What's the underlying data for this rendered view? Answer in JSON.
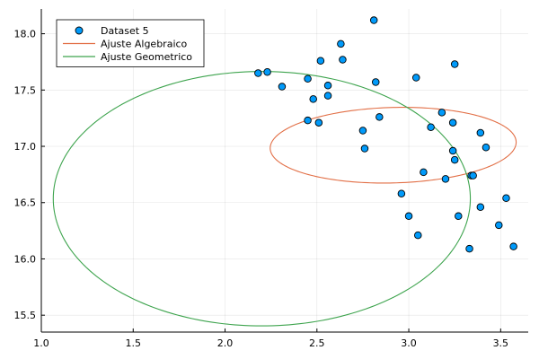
{
  "chart_data": {
    "type": "scatter",
    "xlim": [
      1.0,
      3.65
    ],
    "ylim": [
      15.35,
      18.22
    ],
    "x_ticks": [
      1.0,
      1.5,
      2.0,
      2.5,
      3.0,
      3.5
    ],
    "x_tick_labels": [
      "1.0",
      "1.5",
      "2.0",
      "2.5",
      "3.0",
      "3.5"
    ],
    "y_ticks": [
      15.5,
      16.0,
      16.5,
      17.0,
      17.5,
      18.0
    ],
    "y_tick_labels": [
      "15.5",
      "16.0",
      "16.5",
      "17.0",
      "17.5",
      "18.0"
    ],
    "grid": true,
    "legend_position": "top-left",
    "series": [
      {
        "name": "Dataset 5",
        "kind": "scatter",
        "color": "#009AFA",
        "points": [
          [
            2.18,
            17.65
          ],
          [
            2.23,
            17.66
          ],
          [
            2.31,
            17.53
          ],
          [
            2.45,
            17.6
          ],
          [
            2.52,
            17.76
          ],
          [
            2.63,
            17.91
          ],
          [
            2.64,
            17.77
          ],
          [
            2.81,
            18.12
          ],
          [
            2.56,
            17.54
          ],
          [
            2.48,
            17.42
          ],
          [
            2.56,
            17.45
          ],
          [
            2.45,
            17.23
          ],
          [
            2.51,
            17.21
          ],
          [
            2.82,
            17.57
          ],
          [
            3.04,
            17.61
          ],
          [
            3.25,
            17.73
          ],
          [
            2.84,
            17.26
          ],
          [
            2.75,
            17.14
          ],
          [
            2.76,
            16.98
          ],
          [
            3.12,
            17.17
          ],
          [
            3.18,
            17.3
          ],
          [
            3.24,
            17.21
          ],
          [
            3.39,
            17.12
          ],
          [
            3.42,
            16.99
          ],
          [
            3.24,
            16.96
          ],
          [
            3.25,
            16.88
          ],
          [
            3.34,
            16.74
          ],
          [
            3.35,
            16.74
          ],
          [
            3.08,
            16.77
          ],
          [
            3.2,
            16.71
          ],
          [
            2.96,
            16.58
          ],
          [
            3.0,
            16.38
          ],
          [
            3.05,
            16.21
          ],
          [
            3.27,
            16.38
          ],
          [
            3.39,
            16.46
          ],
          [
            3.53,
            16.54
          ],
          [
            3.49,
            16.3
          ],
          [
            3.33,
            16.09
          ],
          [
            3.57,
            16.11
          ]
        ]
      },
      {
        "name": "Ajuste Algebraico",
        "kind": "ellipse",
        "color": "#E26F46",
        "center": [
          2.915,
          17.01
        ],
        "semi_axes": [
          0.67,
          0.335
        ],
        "rotation_deg": 3
      },
      {
        "name": "Ajuste Geometrico",
        "kind": "ellipse",
        "color": "#3EA44E",
        "center": [
          2.2,
          16.535
        ],
        "semi_axes": [
          1.135,
          1.13
        ],
        "rotation_deg": 3
      }
    ]
  }
}
